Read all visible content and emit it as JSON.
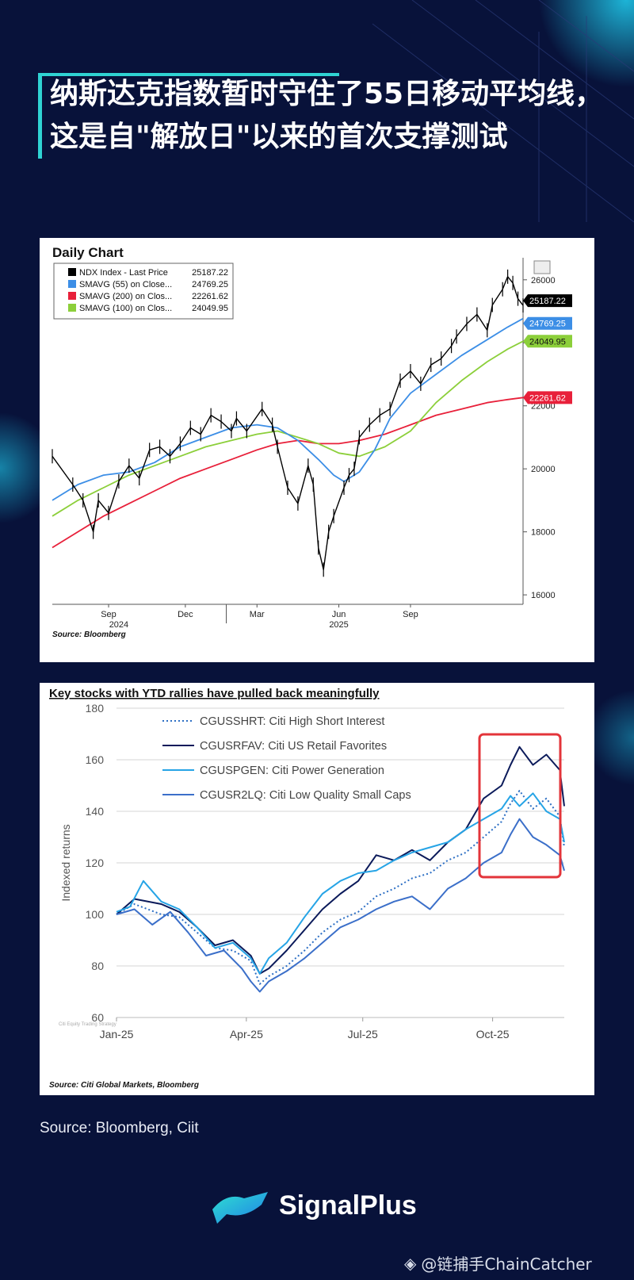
{
  "title": "纳斯达克指数暂时守住了55日移动平均线，这是自\"解放日\"以来的首次支撑测试",
  "chart_data": [
    {
      "type": "line",
      "title": "Daily Chart",
      "source": "Source: Bloomberg",
      "x_labels": [
        "Sep",
        "Dec",
        "Mar",
        "Jun",
        "Sep"
      ],
      "year_labels": [
        "2024",
        "2025"
      ],
      "y_ticks": [
        16000,
        18000,
        20000,
        22000,
        24000,
        26000
      ],
      "ylim": [
        15700,
        26700
      ],
      "legend": [
        {
          "name": "NDX Index - Last Price",
          "value": "25187.22",
          "color": "#000000"
        },
        {
          "name": "SMAVG (55)  on Close...",
          "value": "24769.25",
          "color": "#3c8ee6"
        },
        {
          "name": "SMAVG (200)  on Clos...",
          "value": "22261.62",
          "color": "#e8203a"
        },
        {
          "name": "SMAVG (100)  on Clos...",
          "value": "24049.95",
          "color": "#8ccf3a"
        }
      ],
      "series": [
        {
          "name": "NDX Index - Last Price",
          "color": "#000000",
          "points": [
            [
              0,
              20400
            ],
            [
              4,
              19500
            ],
            [
              6,
              19000
            ],
            [
              8,
              18000
            ],
            [
              9,
              19000
            ],
            [
              11,
              18600
            ],
            [
              13,
              19600
            ],
            [
              15,
              20100
            ],
            [
              17,
              19700
            ],
            [
              19,
              20600
            ],
            [
              21,
              20700
            ],
            [
              23,
              20400
            ],
            [
              25,
              20800
            ],
            [
              27,
              21300
            ],
            [
              29,
              21100
            ],
            [
              31,
              21700
            ],
            [
              33,
              21500
            ],
            [
              35,
              21200
            ],
            [
              36,
              21600
            ],
            [
              38,
              21200
            ],
            [
              41,
              21900
            ],
            [
              43,
              21400
            ],
            [
              44,
              20700
            ],
            [
              46,
              19400
            ],
            [
              48,
              18900
            ],
            [
              50,
              20100
            ],
            [
              51,
              19500
            ],
            [
              52,
              17500
            ],
            [
              53,
              16800
            ],
            [
              54,
              18000
            ],
            [
              55,
              18500
            ],
            [
              57,
              19400
            ],
            [
              58,
              19800
            ],
            [
              59,
              20000
            ],
            [
              60,
              21000
            ],
            [
              62,
              21400
            ],
            [
              64,
              21700
            ],
            [
              66,
              21900
            ],
            [
              68,
              22800
            ],
            [
              70,
              23100
            ],
            [
              72,
              22700
            ],
            [
              74,
              23300
            ],
            [
              76,
              23500
            ],
            [
              78,
              23900
            ],
            [
              79,
              24200
            ],
            [
              81,
              24600
            ],
            [
              83,
              24900
            ],
            [
              85,
              24400
            ],
            [
              86,
              25200
            ],
            [
              88,
              25700
            ],
            [
              89,
              26100
            ],
            [
              90,
              25900
            ],
            [
              91,
              25400
            ],
            [
              92,
              25187
            ]
          ]
        },
        {
          "name": "SMAVG (55)",
          "color": "#3c8ee6",
          "points": [
            [
              0,
              19000
            ],
            [
              5,
              19500
            ],
            [
              10,
              19800
            ],
            [
              15,
              19900
            ],
            [
              20,
              20200
            ],
            [
              25,
              20700
            ],
            [
              30,
              21000
            ],
            [
              35,
              21300
            ],
            [
              40,
              21400
            ],
            [
              44,
              21300
            ],
            [
              48,
              20900
            ],
            [
              52,
              20300
            ],
            [
              55,
              19800
            ],
            [
              57,
              19600
            ],
            [
              60,
              19900
            ],
            [
              63,
              20600
            ],
            [
              66,
              21600
            ],
            [
              70,
              22400
            ],
            [
              75,
              23000
            ],
            [
              80,
              23600
            ],
            [
              85,
              24100
            ],
            [
              89,
              24500
            ],
            [
              92,
              24769
            ]
          ]
        },
        {
          "name": "SMAVG (200)",
          "color": "#e8203a",
          "points": [
            [
              0,
              17500
            ],
            [
              5,
              18000
            ],
            [
              10,
              18500
            ],
            [
              15,
              18900
            ],
            [
              20,
              19300
            ],
            [
              25,
              19700
            ],
            [
              30,
              20000
            ],
            [
              35,
              20300
            ],
            [
              40,
              20600
            ],
            [
              44,
              20800
            ],
            [
              48,
              20900
            ],
            [
              52,
              20800
            ],
            [
              56,
              20800
            ],
            [
              60,
              20900
            ],
            [
              65,
              21100
            ],
            [
              70,
              21400
            ],
            [
              75,
              21700
            ],
            [
              80,
              21900
            ],
            [
              85,
              22100
            ],
            [
              89,
              22200
            ],
            [
              92,
              22262
            ]
          ]
        },
        {
          "name": "SMAVG (100)",
          "color": "#8ccf3a",
          "points": [
            [
              0,
              18500
            ],
            [
              5,
              19000
            ],
            [
              10,
              19400
            ],
            [
              15,
              19800
            ],
            [
              20,
              20100
            ],
            [
              25,
              20400
            ],
            [
              30,
              20700
            ],
            [
              35,
              20900
            ],
            [
              40,
              21100
            ],
            [
              44,
              21200
            ],
            [
              48,
              21000
            ],
            [
              52,
              20800
            ],
            [
              56,
              20500
            ],
            [
              60,
              20400
            ],
            [
              65,
              20700
            ],
            [
              70,
              21200
            ],
            [
              75,
              22100
            ],
            [
              80,
              22800
            ],
            [
              85,
              23400
            ],
            [
              89,
              23800
            ],
            [
              92,
              24050
            ]
          ]
        }
      ]
    },
    {
      "type": "line",
      "title": "Key stocks with YTD rallies have pulled back meaningfully",
      "ylabel": "Indexed returns",
      "y_ticks": [
        60,
        80,
        100,
        120,
        140,
        160,
        180
      ],
      "ylim": [
        60,
        180
      ],
      "x_labels": [
        "Jan-25",
        "Apr-25",
        "Jul-25",
        "Oct-25"
      ],
      "source": "Source: Citi Global Markets, Bloomberg",
      "watermark": "Citi Equity Trading Strategy",
      "highlight": "red box around Oct-25 to end",
      "series": [
        {
          "name": "CGUSSHRT: Citi High Short Interest",
          "color": "#2d6fc4",
          "style": "dotted",
          "points": [
            [
              0,
              100
            ],
            [
              4,
              104
            ],
            [
              10,
              100
            ],
            [
              14,
              99
            ],
            [
              18,
              93
            ],
            [
              22,
              87
            ],
            [
              26,
              86
            ],
            [
              30,
              82
            ],
            [
              32,
              73
            ],
            [
              34,
              76
            ],
            [
              38,
              80
            ],
            [
              42,
              86
            ],
            [
              46,
              93
            ],
            [
              50,
              98
            ],
            [
              54,
              101
            ],
            [
              58,
              107
            ],
            [
              62,
              110
            ],
            [
              66,
              114
            ],
            [
              70,
              116
            ],
            [
              74,
              121
            ],
            [
              78,
              124
            ],
            [
              82,
              130
            ],
            [
              86,
              136
            ],
            [
              88,
              143
            ],
            [
              90,
              148
            ],
            [
              93,
              141
            ],
            [
              96,
              145
            ],
            [
              99,
              138
            ],
            [
              100,
              126
            ]
          ]
        },
        {
          "name": "CGUSRFAV: Citi US Retail Favorites",
          "color": "#0b1a5a",
          "style": "solid",
          "points": [
            [
              0,
              100
            ],
            [
              4,
              106
            ],
            [
              10,
              104
            ],
            [
              14,
              101
            ],
            [
              18,
              95
            ],
            [
              22,
              88
            ],
            [
              26,
              90
            ],
            [
              30,
              84
            ],
            [
              32,
              77
            ],
            [
              34,
              79
            ],
            [
              38,
              86
            ],
            [
              42,
              94
            ],
            [
              46,
              102
            ],
            [
              50,
              108
            ],
            [
              54,
              113
            ],
            [
              58,
              123
            ],
            [
              62,
              121
            ],
            [
              66,
              125
            ],
            [
              70,
              121
            ],
            [
              74,
              128
            ],
            [
              78,
              133
            ],
            [
              82,
              145
            ],
            [
              86,
              150
            ],
            [
              88,
              158
            ],
            [
              90,
              165
            ],
            [
              93,
              158
            ],
            [
              96,
              162
            ],
            [
              99,
              156
            ],
            [
              100,
              142
            ]
          ]
        },
        {
          "name": "CGUSPGEN: Citi Power Generation",
          "color": "#26a4e6",
          "style": "solid",
          "points": [
            [
              0,
              101
            ],
            [
              3,
              103
            ],
            [
              6,
              113
            ],
            [
              10,
              105
            ],
            [
              14,
              102
            ],
            [
              18,
              95
            ],
            [
              22,
              87
            ],
            [
              26,
              89
            ],
            [
              30,
              83
            ],
            [
              32,
              77
            ],
            [
              34,
              83
            ],
            [
              38,
              89
            ],
            [
              42,
              99
            ],
            [
              46,
              108
            ],
            [
              50,
              113
            ],
            [
              54,
              116
            ],
            [
              58,
              117
            ],
            [
              62,
              121
            ],
            [
              66,
              124
            ],
            [
              70,
              126
            ],
            [
              74,
              128
            ],
            [
              78,
              133
            ],
            [
              82,
              137
            ],
            [
              86,
              141
            ],
            [
              88,
              146
            ],
            [
              90,
              142
            ],
            [
              93,
              147
            ],
            [
              96,
              140
            ],
            [
              99,
              137
            ],
            [
              100,
              128
            ]
          ]
        },
        {
          "name": "CGUSR2LQ: Citi Low Quality Small Caps",
          "color": "#3b6fc9",
          "style": "solid",
          "points": [
            [
              0,
              100
            ],
            [
              4,
              102
            ],
            [
              8,
              96
            ],
            [
              12,
              101
            ],
            [
              16,
              93
            ],
            [
              20,
              84
            ],
            [
              24,
              86
            ],
            [
              28,
              79
            ],
            [
              30,
              74
            ],
            [
              32,
              70
            ],
            [
              34,
              74
            ],
            [
              38,
              78
            ],
            [
              42,
              83
            ],
            [
              46,
              89
            ],
            [
              50,
              95
            ],
            [
              54,
              98
            ],
            [
              58,
              102
            ],
            [
              62,
              105
            ],
            [
              66,
              107
            ],
            [
              70,
              102
            ],
            [
              74,
              110
            ],
            [
              78,
              114
            ],
            [
              82,
              120
            ],
            [
              86,
              124
            ],
            [
              88,
              131
            ],
            [
              90,
              137
            ],
            [
              93,
              130
            ],
            [
              96,
              127
            ],
            [
              99,
              123
            ],
            [
              100,
              117
            ]
          ]
        }
      ]
    }
  ],
  "card2_legend_labels": [
    "CGUSSHRT: Citi High Short Interest",
    "CGUSRFAV: Citi US Retail Favorites",
    "CGUSPGEN: Citi Power Generation",
    "CGUSR2LQ: Citi Low Quality Small Caps"
  ],
  "footer": {
    "source": "Source: Bloomberg, Ciit",
    "brand": "SignalPlus",
    "watermark": "@链捕手ChainCatcher"
  },
  "colors": {
    "background": "#08123a",
    "accent": "#2fd3d3",
    "highlight_box": "#e3343a"
  }
}
